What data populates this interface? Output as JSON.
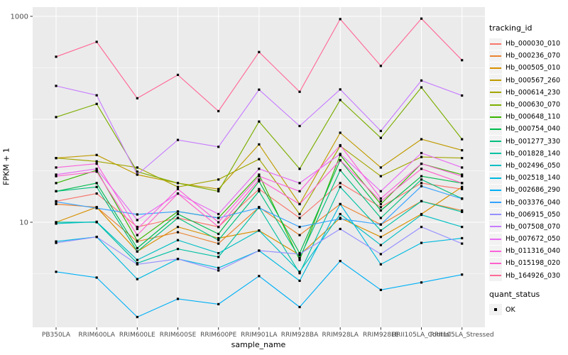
{
  "chart_data": {
    "type": "line",
    "title": "",
    "xlabel": "sample_name",
    "ylabel": "FPKM + 1",
    "y_scale": "log10",
    "y_axis_tick_labels": [
      "1000",
      "10"
    ],
    "y_axis_tick_values": [
      1000,
      10
    ],
    "ylim": [
      1,
      1270
    ],
    "grid": "white major+minor on grey panel",
    "legend_position": "right",
    "categories": [
      "PB350LA",
      "RRIM600LA",
      "RRIM600LE",
      "RRIM600SE",
      "RRIM600PE",
      "RRIM901LA",
      "RRIM928BA",
      "RRIM928LA",
      "RRIM928LE",
      "RRII105LA_Control",
      "RRII105LA_Stressed"
    ],
    "series": [
      {
        "name": "Hb_000030_010",
        "color": "#F8766D",
        "values": [
          16,
          19,
          9,
          11,
          9,
          21,
          11,
          24,
          14,
          24,
          21
        ]
      },
      {
        "name": "Hb_000236_070",
        "color": "#EA8331",
        "values": [
          15,
          14,
          6.5,
          8,
          6.2,
          14,
          7.5,
          15,
          9.5,
          16,
          13
        ]
      },
      {
        "name": "Hb_000505_010",
        "color": "#D89000",
        "values": [
          10,
          14,
          5.2,
          9,
          7,
          8.3,
          4.8,
          11,
          7.2,
          12,
          22
        ]
      },
      {
        "name": "Hb_000567_260",
        "color": "#C09B00",
        "values": [
          42,
          45,
          29,
          24,
          21,
          57,
          15,
          74,
          34,
          64,
          50
        ]
      },
      {
        "name": "Hb_000614_230",
        "color": "#A3A500",
        "values": [
          42,
          39,
          34,
          22,
          26,
          41,
          12,
          55,
          28,
          43,
          42
        ]
      },
      {
        "name": "Hb_000630_070",
        "color": "#7CAE00",
        "values": [
          105,
          141,
          31,
          24,
          20,
          95,
          33,
          154,
          66,
          204,
          64
        ]
      },
      {
        "name": "Hb_000648_110",
        "color": "#39B600",
        "values": [
          24,
          32,
          6.6,
          12.7,
          11,
          29,
          4.3,
          45,
          15,
          37,
          29
        ]
      },
      {
        "name": "Hb_000754_040",
        "color": "#00BB4E",
        "values": [
          20,
          24,
          5.6,
          12,
          7.7,
          25,
          5,
          40,
          13,
          28,
          24
        ]
      },
      {
        "name": "Hb_001277_330",
        "color": "#00BF7D",
        "values": [
          20,
          22,
          5.2,
          11,
          6.7,
          20,
          4.5,
          32,
          11,
          26,
          17
        ]
      },
      {
        "name": "Hb_001828_140",
        "color": "#00C1A3",
        "values": [
          10,
          10,
          4,
          5.5,
          4.6,
          14,
          3.2,
          22,
          8.3,
          16,
          12.6
        ]
      },
      {
        "name": "Hb_002496_050",
        "color": "#00BFC4",
        "values": [
          9.7,
          10.1,
          4.3,
          6.7,
          5,
          8.3,
          3.3,
          12,
          6,
          11.8,
          9
        ]
      },
      {
        "name": "Hb_002518_140",
        "color": "#00BAE0",
        "values": [
          6.5,
          7.2,
          2.8,
          4.4,
          3.6,
          5.3,
          2.7,
          15,
          3.9,
          6.3,
          7
        ]
      },
      {
        "name": "Hb_002686_290",
        "color": "#00B0F6",
        "values": [
          3.3,
          2.9,
          1.2,
          1.8,
          1.6,
          3,
          1.5,
          4.2,
          2.2,
          2.6,
          3.1
        ]
      },
      {
        "name": "Hb_003376_040",
        "color": "#35A2FF",
        "values": [
          15.8,
          13.7,
          11.9,
          12.7,
          11,
          13.8,
          9,
          10.8,
          9.5,
          22.4,
          16.9
        ]
      },
      {
        "name": "Hb_006915_050",
        "color": "#9590FF",
        "values": [
          6.3,
          7.2,
          3.9,
          4.4,
          3.4,
          5.3,
          4.9,
          8.6,
          4.9,
          9,
          6.2
        ]
      },
      {
        "name": "Hb_007508_070",
        "color": "#C77CFF",
        "values": [
          211,
          171,
          29,
          63,
          54,
          194,
          86,
          195,
          77,
          238,
          170
        ]
      },
      {
        "name": "Hb_007672_050",
        "color": "#E76BF3",
        "values": [
          29,
          33,
          10.5,
          19,
          12,
          33,
          24,
          46,
          20,
          47,
          34
        ]
      },
      {
        "name": "Hb_011316_040",
        "color": "#FA62DB",
        "values": [
          34,
          37,
          8.6,
          21,
          10,
          28,
          20,
          56,
          17,
          37,
          28
        ]
      },
      {
        "name": "Hb_015198_020",
        "color": "#FF61CC",
        "values": [
          28,
          31,
          7.5,
          19,
          9,
          26,
          15,
          40,
          16,
          33,
          24
        ]
      },
      {
        "name": "Hb_164926_030",
        "color": "#FF6A98",
        "values": [
          405,
          565,
          160,
          270,
          120,
          450,
          185,
          940,
          330,
          950,
          375
        ]
      }
    ],
    "legend_title": "tracking_id",
    "points_legend": {
      "title": "quant_status",
      "items": [
        "OK"
      ],
      "point_color": "#000000",
      "point_shape": "square"
    }
  },
  "style": {
    "panel_bg": "#EBEBEB",
    "grid_color": "#FFFFFF",
    "axis_text_color": "#4D4D4D",
    "tick_mark_color": "#333333",
    "legend_key_bg": "#F2F2F2",
    "point_color": "#000000"
  }
}
